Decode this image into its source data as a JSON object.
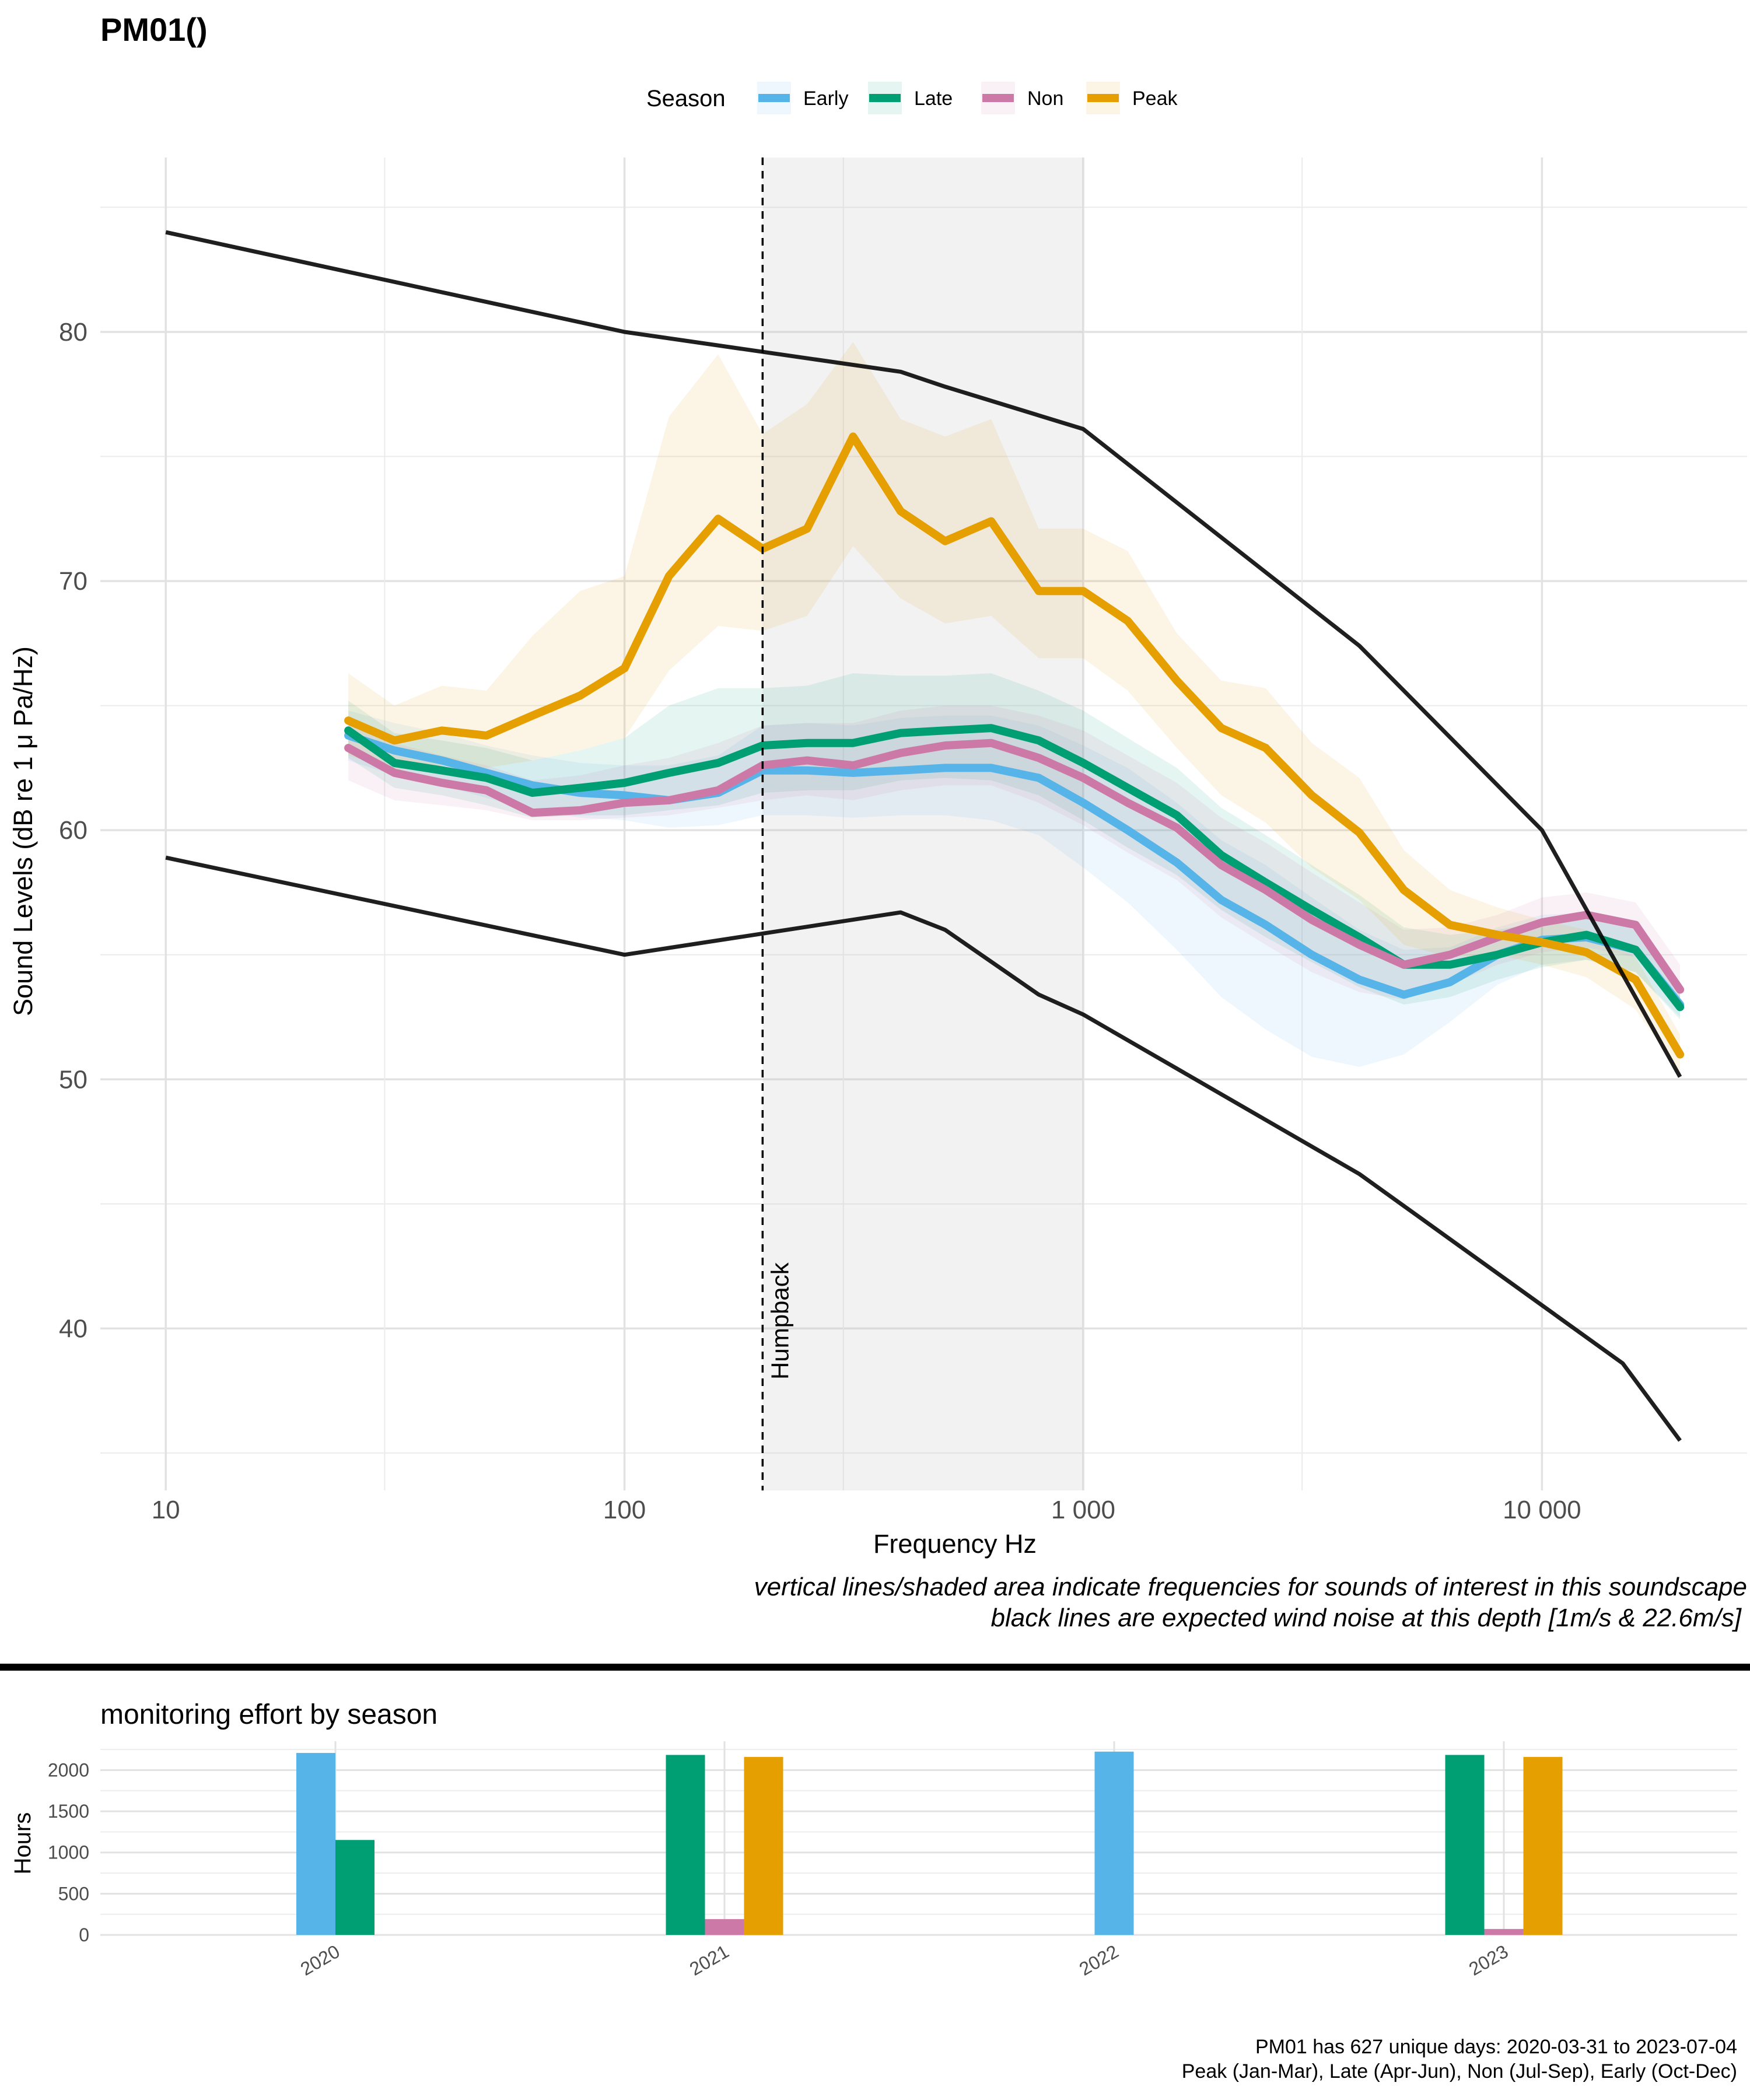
{
  "title": "PM01()",
  "chart_data": [
    {
      "type": "line",
      "title": "PM01()",
      "xlabel": "Frequency Hz",
      "ylabel": "Sound Levels (dB re 1 μ Pa/Hz)",
      "xscale": "log",
      "xlim": [
        7.2,
        28000
      ],
      "ylim": [
        33.5,
        87.0
      ],
      "grid": true,
      "x_ticks": [
        10,
        100,
        1000,
        10000
      ],
      "x_tick_labels": [
        "10",
        "100",
        "1 000",
        "10 000"
      ],
      "y_ticks": [
        40,
        50,
        60,
        70,
        80
      ],
      "y_tick_labels": [
        "40",
        "50",
        "60",
        "70",
        "80"
      ],
      "legend": {
        "title": "Season",
        "placement": "top",
        "entries": [
          "Early",
          "Late",
          "Non",
          "Peak"
        ]
      },
      "shaded_region": {
        "x_from": 200,
        "x_to": 1000
      },
      "vline": {
        "x": 200,
        "label": "Humpback",
        "style": "dashed"
      },
      "caption_lines": [
        "vertical lines/shaded area indicate frequencies for sounds of interest in this soundscape",
        "black lines are expected wind noise at this depth [1m/s & 22.6m/s]"
      ],
      "x": [
        25,
        31.5,
        40,
        50,
        63,
        80,
        100,
        125,
        160,
        200,
        250,
        315,
        400,
        500,
        630,
        800,
        1000,
        1250,
        1600,
        2000,
        2500,
        3150,
        4000,
        5000,
        6300,
        8000,
        10000,
        12500,
        16000,
        20000
      ],
      "series": [
        {
          "name": "Early",
          "color": "#56B4E9",
          "values": [
            63.8,
            63.2,
            62.8,
            62.3,
            61.8,
            61.5,
            61.4,
            61.2,
            61.5,
            62.4,
            62.4,
            62.3,
            62.4,
            62.5,
            62.5,
            62.1,
            61.1,
            60.0,
            58.7,
            57.2,
            56.2,
            55.0,
            54.0,
            53.4,
            53.9,
            55.0,
            55.6,
            55.7,
            55.2,
            53.0
          ],
          "lower": [
            62.8,
            62.2,
            61.8,
            61.3,
            60.8,
            60.5,
            60.4,
            60.1,
            60.2,
            60.6,
            60.6,
            60.5,
            60.6,
            60.6,
            60.4,
            59.8,
            58.5,
            57.1,
            55.2,
            53.3,
            52.0,
            50.9,
            50.5,
            51.0,
            52.3,
            53.8,
            54.6,
            54.8,
            54.3,
            52.5
          ],
          "upper": [
            64.8,
            64.3,
            63.9,
            63.4,
            63.0,
            62.7,
            62.6,
            62.6,
            63.0,
            64.2,
            64.3,
            64.2,
            64.5,
            64.6,
            64.6,
            64.2,
            63.4,
            62.5,
            61.1,
            59.6,
            58.6,
            57.3,
            56.0,
            55.2,
            55.3,
            56.1,
            56.6,
            56.7,
            56.1,
            53.8
          ]
        },
        {
          "name": "Late",
          "color": "#009E73",
          "values": [
            64.0,
            62.7,
            62.4,
            62.1,
            61.5,
            61.7,
            61.9,
            62.3,
            62.7,
            63.4,
            63.5,
            63.5,
            63.9,
            64.0,
            64.1,
            63.6,
            62.7,
            61.7,
            60.6,
            59.0,
            57.9,
            56.8,
            55.7,
            54.6,
            54.6,
            55.0,
            55.5,
            55.8,
            55.2,
            52.9
          ],
          "lower": [
            62.9,
            61.7,
            61.4,
            61.0,
            60.5,
            60.6,
            60.6,
            60.8,
            61.0,
            61.5,
            61.6,
            61.6,
            62.0,
            62.1,
            62.0,
            61.4,
            60.4,
            59.3,
            58.2,
            56.8,
            55.7,
            54.7,
            53.7,
            53.0,
            53.3,
            54.0,
            54.5,
            54.8,
            54.3,
            52.4
          ],
          "upper": [
            65.2,
            63.9,
            63.6,
            63.3,
            62.8,
            63.2,
            63.7,
            65.0,
            65.7,
            65.7,
            65.8,
            66.3,
            66.2,
            66.2,
            66.3,
            65.6,
            64.8,
            63.7,
            62.5,
            60.9,
            59.8,
            58.6,
            57.4,
            56.1,
            55.8,
            56.0,
            56.3,
            56.6,
            56.0,
            53.6
          ]
        },
        {
          "name": "Non",
          "color": "#CC79A7",
          "values": [
            63.3,
            62.3,
            61.9,
            61.6,
            60.7,
            60.8,
            61.1,
            61.2,
            61.6,
            62.6,
            62.8,
            62.6,
            63.1,
            63.4,
            63.5,
            62.9,
            62.1,
            61.1,
            60.1,
            58.6,
            57.6,
            56.4,
            55.4,
            54.6,
            55.0,
            55.7,
            56.3,
            56.6,
            56.2,
            53.6
          ],
          "lower": [
            62.0,
            61.2,
            61.0,
            60.8,
            60.4,
            60.4,
            60.5,
            60.6,
            60.9,
            61.2,
            61.4,
            61.2,
            61.6,
            61.8,
            61.8,
            61.1,
            60.2,
            59.1,
            58.0,
            56.5,
            55.4,
            54.3,
            53.5,
            53.2,
            53.8,
            54.6,
            55.1,
            55.3,
            54.9,
            52.8
          ],
          "upper": [
            64.6,
            63.5,
            63.0,
            62.6,
            62.0,
            62.2,
            62.6,
            62.9,
            63.5,
            64.2,
            64.3,
            64.3,
            64.8,
            65.0,
            65.0,
            64.6,
            64.0,
            63.0,
            61.9,
            60.5,
            59.5,
            58.3,
            57.1,
            56.0,
            56.1,
            56.6,
            57.3,
            57.5,
            57.1,
            54.6
          ]
        },
        {
          "name": "Peak",
          "color": "#E69F00",
          "values": [
            64.4,
            63.6,
            64.0,
            63.8,
            64.6,
            65.4,
            66.5,
            70.2,
            72.5,
            71.3,
            72.1,
            75.8,
            72.8,
            71.6,
            72.4,
            69.6,
            69.6,
            68.4,
            66.0,
            64.1,
            63.3,
            61.4,
            59.9,
            57.6,
            56.2,
            55.8,
            55.5,
            55.1,
            54.0,
            51.0
          ],
          "lower": [
            63.0,
            62.4,
            62.6,
            62.5,
            62.8,
            63.2,
            63.7,
            66.4,
            68.2,
            68.0,
            68.6,
            71.4,
            69.3,
            68.3,
            68.6,
            66.9,
            66.9,
            65.6,
            63.3,
            61.4,
            60.3,
            58.5,
            57.2,
            55.4,
            54.9,
            55.0,
            54.6,
            54.1,
            52.8,
            50.3
          ],
          "upper": [
            66.3,
            65.0,
            65.8,
            65.6,
            67.8,
            69.6,
            70.2,
            76.6,
            79.1,
            75.9,
            77.1,
            79.6,
            76.5,
            75.8,
            76.5,
            72.1,
            72.1,
            71.2,
            67.9,
            66.0,
            65.7,
            63.5,
            62.1,
            59.2,
            57.6,
            56.9,
            56.4,
            56.0,
            54.9,
            51.8
          ]
        }
      ],
      "reference_lines": [
        {
          "name": "wind 22.6m/s",
          "color": "#000000",
          "x": [
            10,
            100,
            400,
            500,
            1000,
            4000,
            10000,
            20000
          ],
          "values": [
            84.0,
            80.0,
            78.4,
            77.8,
            76.1,
            67.4,
            60.0,
            50.1
          ]
        },
        {
          "name": "wind 1m/s",
          "color": "#000000",
          "x": [
            10,
            100,
            400,
            500,
            800,
            1000,
            4000,
            15000,
            20000
          ],
          "values": [
            58.9,
            55.0,
            56.7,
            56.0,
            53.4,
            52.6,
            46.2,
            38.6,
            35.5
          ]
        }
      ]
    },
    {
      "type": "bar",
      "title": "monitoring effort by season",
      "xlabel": "",
      "ylabel": "Hours",
      "ylim": [
        0,
        2350
      ],
      "y_ticks": [
        0,
        500,
        1000,
        1500,
        2000
      ],
      "y_tick_labels": [
        "0",
        "500",
        "1000",
        "1500",
        "2000"
      ],
      "categories": [
        "2020",
        "2021",
        "2022",
        "2023"
      ],
      "series": [
        {
          "name": "Early",
          "color": "#56B4E9",
          "values": [
            2208,
            0,
            2224,
            0
          ]
        },
        {
          "name": "Late",
          "color": "#009E73",
          "values": [
            1152,
            2184,
            0,
            2184
          ]
        },
        {
          "name": "Non",
          "color": "#CC79A7",
          "values": [
            0,
            192,
            0,
            72
          ]
        },
        {
          "name": "Peak",
          "color": "#E69F00",
          "values": [
            0,
            2160,
            0,
            2160
          ]
        }
      ]
    }
  ],
  "footer": {
    "line1": "PM01 has 627 unique days: 2020-03-31 to 2023-07-04",
    "line2": "Peak (Jan-Mar), Late (Apr-Jun), Non (Jul-Sep), Early (Oct-Dec)"
  }
}
